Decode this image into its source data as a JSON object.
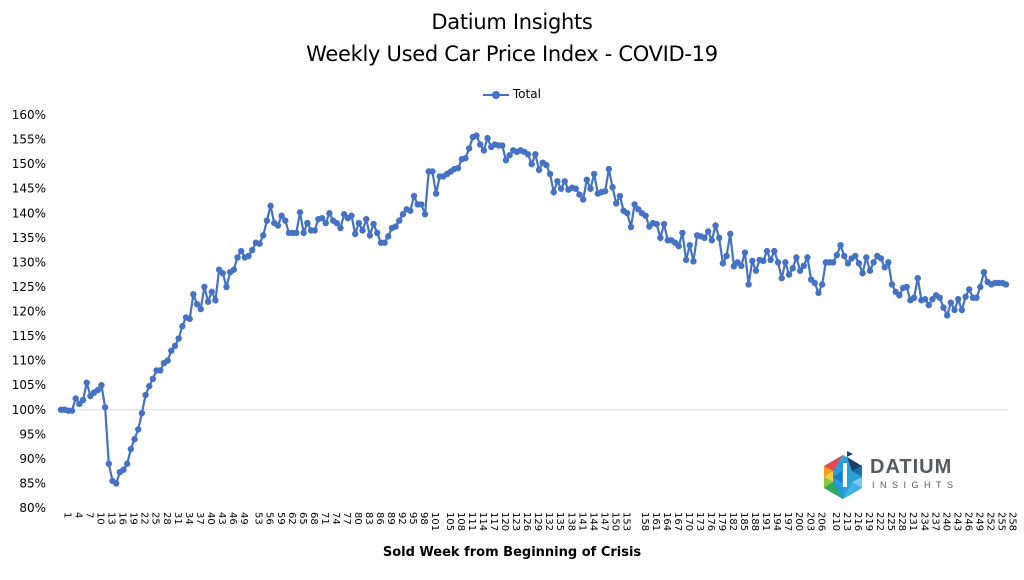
{
  "header": {
    "title_line1": "Datium Insights",
    "title_line2": "Weekly Used Car Price Index - COVID-19"
  },
  "legend": {
    "label": "Total"
  },
  "axis": {
    "x_title": "Sold Week from Beginning of Crisis"
  },
  "logo": {
    "word": "DATIUM",
    "sub": "INSIGHTS"
  },
  "colors": {
    "series": "#4472c4",
    "gridline_100": "#d9d9d9"
  },
  "chart_data": {
    "type": "line",
    "title": "Datium Insights — Weekly Used Car Price Index - COVID-19",
    "xlabel": "Sold Week from Beginning of Crisis",
    "ylabel": "",
    "ylim": [
      0.8,
      1.6
    ],
    "y_ticks": [
      "80%",
      "85%",
      "90%",
      "95%",
      "100%",
      "105%",
      "110%",
      "115%",
      "120%",
      "125%",
      "130%",
      "135%",
      "140%",
      "145%",
      "150%",
      "155%",
      "160%"
    ],
    "x_tick_labels": [
      "1",
      "4",
      "7",
      "10",
      "13",
      "16",
      "19",
      "22",
      "25",
      "28",
      "31",
      "34",
      "37",
      "40",
      "43",
      "46",
      "49",
      "53",
      "56",
      "59",
      "62",
      "65",
      "68",
      "71",
      "74",
      "77",
      "80",
      "83",
      "86",
      "89",
      "92",
      "95",
      "98",
      "101",
      "105",
      "108",
      "111",
      "114",
      "117",
      "120",
      "123",
      "126",
      "129",
      "132",
      "135",
      "138",
      "141",
      "144",
      "147",
      "150",
      "153",
      "158",
      "161",
      "164",
      "167",
      "170",
      "173",
      "176",
      "179",
      "182",
      "185",
      "188",
      "191",
      "194",
      "197",
      "200",
      "203",
      "206",
      "210",
      "213",
      "216",
      "219",
      "222",
      "225",
      "228",
      "231",
      "234",
      "237",
      "240",
      "243",
      "246",
      "249",
      "252",
      "255",
      "258"
    ],
    "legend": [
      "Total"
    ],
    "legend_position": "top",
    "grid": "horizontal line at 100% only",
    "series": [
      {
        "name": "Total",
        "x_start": 1,
        "values": [
          100,
          100,
          99.8,
          99.8,
          102.3,
          101.2,
          102,
          105.5,
          102.8,
          103.5,
          104,
          105,
          100.5,
          89,
          85.5,
          85,
          87.3,
          87.8,
          89,
          92,
          94,
          96,
          99.3,
          103,
          104.8,
          106.3,
          108,
          108,
          109.5,
          110,
          112,
          113,
          114.5,
          117,
          118.8,
          118.5,
          123.5,
          121.5,
          120.5,
          125,
          122,
          124,
          122.3,
          128.5,
          127.8,
          125,
          128,
          128.5,
          131,
          132.3,
          131,
          131.3,
          132.5,
          134,
          133.8,
          135.5,
          138.5,
          141.5,
          138,
          137.5,
          139.5,
          138.5,
          136,
          136,
          136,
          140.2,
          136,
          138,
          136.5,
          136.5,
          138.8,
          139,
          138,
          140,
          138.5,
          138,
          137,
          139.8,
          139,
          139.5,
          135.8,
          138,
          136.5,
          138.8,
          135.5,
          137.8,
          136,
          134,
          134,
          135.3,
          137,
          137.3,
          138.5,
          139.8,
          140.8,
          140.5,
          143.5,
          141.8,
          141.8,
          139.8,
          148.5,
          148.5,
          144,
          147.5,
          147.5,
          148,
          148.5,
          149,
          149.2,
          151,
          151.2,
          153.2,
          155.5,
          155.8,
          154,
          152.8,
          155.3,
          153.5,
          154,
          153.8,
          153.8,
          150.8,
          151.8,
          152.8,
          152.5,
          152.8,
          152.5,
          152,
          150,
          152,
          148.8,
          150.3,
          149.8,
          148,
          144.3,
          146.5,
          145,
          146.5,
          144.8,
          145.2,
          145,
          143.8,
          142.8,
          146.8,
          145,
          148,
          144,
          144.3,
          144.5,
          149,
          145.3,
          142,
          143.5,
          140.5,
          140,
          137.2,
          141.8,
          140.8,
          140,
          139.5,
          137.3,
          138,
          137.8,
          135,
          137.8,
          134.5,
          134.5,
          134,
          133.3,
          136,
          130.5,
          133.5,
          130.2,
          135.5,
          135.3,
          135,
          136.3,
          134.5,
          137.5,
          135,
          129.8,
          131.3,
          135.8,
          129.2,
          130,
          129.3,
          132,
          125.5,
          130.3,
          128.3,
          130.5,
          130.3,
          132.3,
          130.5,
          132.3,
          130,
          126.8,
          130,
          127.5,
          128.8,
          131,
          128.3,
          129.3,
          131,
          126.5,
          125.8,
          123.8,
          125.5,
          130,
          130,
          130,
          131.5,
          133.5,
          131.3,
          129.8,
          130.8,
          131.3,
          129.8,
          127.8,
          131,
          128.3,
          130,
          131.3,
          130.8,
          129,
          130,
          125.5,
          124,
          123.3,
          124.8,
          125,
          122.3,
          122.8,
          126.8,
          122.3,
          122.5,
          121.3,
          122.5,
          123.3,
          122.8,
          120.8,
          119.2,
          121.8,
          120.3,
          122.5,
          120.3,
          123,
          124.5,
          122.8,
          122.8,
          125,
          128,
          126,
          125.5,
          125.8,
          125.8,
          125.8,
          125.5
        ]
      }
    ]
  }
}
